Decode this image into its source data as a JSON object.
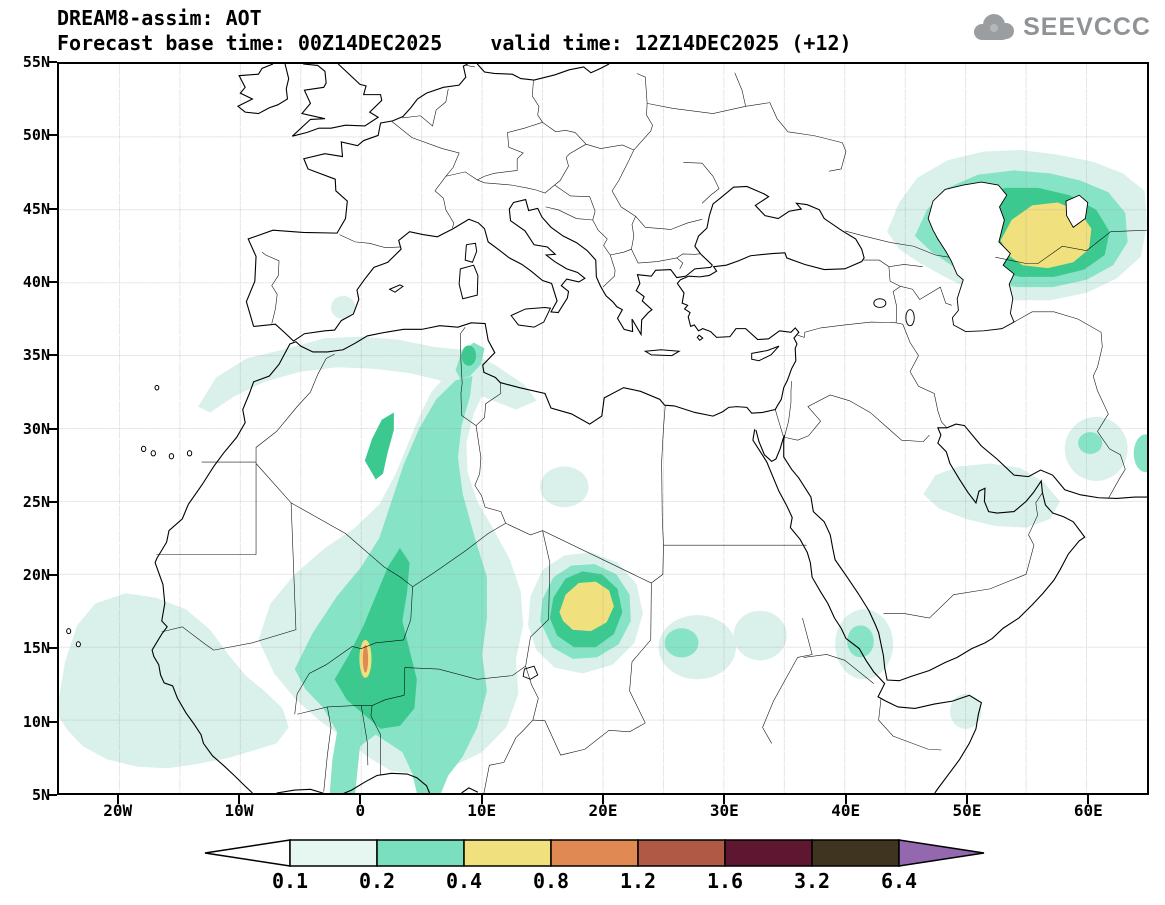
{
  "header": {
    "title": "DREAM8-assim: AOT",
    "forecast_base_time_label": "Forecast base time: 00Z14DEC2025",
    "valid_time_label": "valid time: 12Z14DEC2025 (+12)"
  },
  "branding": {
    "logo_text": "SEEVCCC",
    "logo_color": "#909396"
  },
  "chart_data": {
    "type": "heatmap",
    "title": "DREAM8-assim: AOT",
    "model": "DREAM8-assim",
    "variable": "AOT (aerosol optical thickness)",
    "forecast_base_time": "00Z14DEC2025",
    "valid_time": "12Z14DEC2025",
    "forecast_hour": "+12",
    "map_domain": {
      "lon_min_deg": -25,
      "lon_max_deg": 65,
      "lat_min_deg": 5,
      "lat_max_deg": 55
    },
    "x_axis": {
      "tick_labels": [
        "20W",
        "10W",
        "0",
        "10E",
        "20E",
        "30E",
        "40E",
        "50E",
        "60E"
      ],
      "tick_values_deg": [
        -20,
        -10,
        0,
        10,
        20,
        30,
        40,
        50,
        60
      ]
    },
    "y_axis": {
      "tick_labels": [
        "55N",
        "50N",
        "45N",
        "40N",
        "35N",
        "30N",
        "25N",
        "20N",
        "15N",
        "10N",
        "5N"
      ],
      "tick_values_deg": [
        55,
        50,
        45,
        40,
        35,
        30,
        25,
        20,
        15,
        10,
        5
      ]
    },
    "grid": {
      "shown": true,
      "interval_deg": 5,
      "style": "dotted"
    },
    "colorbar": {
      "orientation": "horizontal",
      "levels": [
        0.1,
        0.2,
        0.4,
        0.8,
        1.2,
        1.6,
        3.2,
        6.4
      ],
      "labels": [
        "0.1",
        "0.2",
        "0.4",
        "0.8",
        "1.2",
        "1.6",
        "3.2",
        "6.4"
      ],
      "colors": [
        "#ffffff",
        "#e6f7f1",
        "#7adfbf",
        "#f1e17e",
        "#e08953",
        "#b05a45",
        "#5f1630",
        "#3f3420",
        "#9468ae"
      ]
    },
    "features": [
      {
        "region": "Eastern tropical Atlantic off West Africa (Senegal-Guinea)",
        "aot": "0.1-0.2",
        "approx_lon": "25W-10W",
        "approx_lat": "7N-19N"
      },
      {
        "region": "Sahel plume: Mali-Niger-Nigeria-Benin",
        "aot": "0.2-0.4",
        "approx_lon": "6W-11E",
        "approx_lat": "6N-24N"
      },
      {
        "region": "Local maximum streak near Niger",
        "aot": "0.8-1.2",
        "approx_lon": "0E",
        "approx_lat": "14N"
      },
      {
        "region": "Northwest Africa / Atlas band (Morocco-Algeria-Tunisia)",
        "aot": "0.1-0.2",
        "approx_lon": "13W-14E",
        "approx_lat": "31N-36N"
      },
      {
        "region": "Central Algeria plume",
        "aot": "0.2-0.4",
        "approx_lon": "0E-9E",
        "approx_lat": "27N-34N"
      },
      {
        "region": "Bodele / Chad depression plume",
        "aot": "0.4-0.8 core",
        "approx_lon": "14E-23E",
        "approx_lat": "13N-21N"
      },
      {
        "region": "Sudan patches",
        "aot": "0.1-0.3",
        "approx_lon": "24E-35E",
        "approx_lat": "13N-18N"
      },
      {
        "region": "Southern Red Sea",
        "aot": "0.1-0.3",
        "approx_lon": "39E-44E",
        "approx_lat": "13N-17N"
      },
      {
        "region": "Persian Gulf and southern Iran coast",
        "aot": "0.1-0.2",
        "approx_lon": "46E-58E",
        "approx_lat": "23N-28N"
      },
      {
        "region": "Southeast Iran",
        "aot": "0.1-0.4",
        "approx_lon": "58E-63E",
        "approx_lat": "26N-31N"
      },
      {
        "region": "Caspian / Aral Central Asia plume",
        "aot": "0.4-0.8 core",
        "approx_lon": "44E-65E",
        "approx_lat": "38N-49N"
      },
      {
        "region": "Horn of Africa spot",
        "aot": "0.1-0.2",
        "approx_lon": "49E-51E",
        "approx_lat": "10N-12N"
      }
    ]
  }
}
